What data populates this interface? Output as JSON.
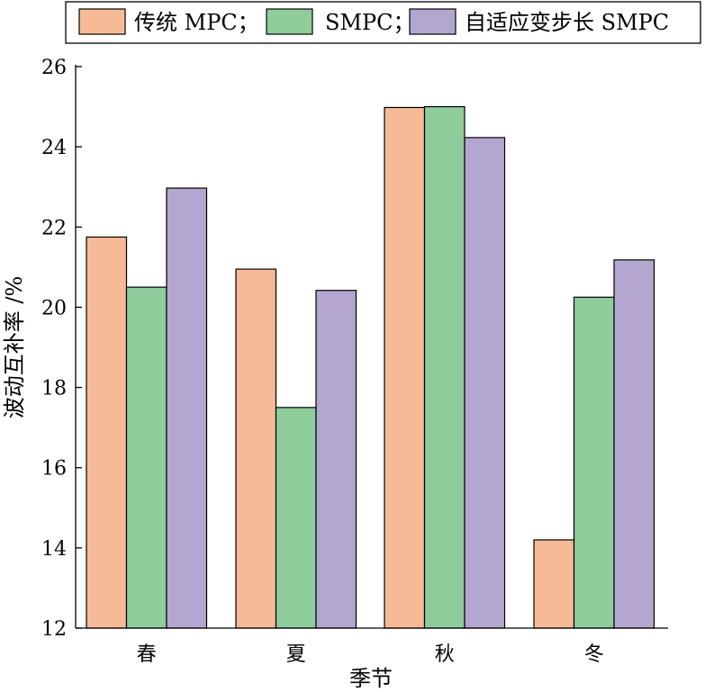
{
  "chart_data": {
    "type": "bar",
    "categories": [
      "春",
      "夏",
      "秋",
      "冬"
    ],
    "series": [
      {
        "name": "传统 MPC；",
        "color": "#F6BB96",
        "values": [
          21.75,
          20.95,
          24.98,
          14.2
        ]
      },
      {
        "name": "SMPC；",
        "color": "#8FCC9C",
        "values": [
          20.5,
          17.5,
          25.0,
          20.25
        ]
      },
      {
        "name": "自适应变步长 SMPC",
        "color": "#B3A6CF",
        "values": [
          22.97,
          20.42,
          24.23,
          21.18
        ]
      }
    ],
    "xlabel": "季节",
    "ylabel": "波动互补率 /%",
    "ylim": [
      12,
      26
    ],
    "yticks": [
      12,
      14,
      16,
      18,
      20,
      22,
      24,
      26
    ],
    "grid": false,
    "legend_position": "top"
  }
}
